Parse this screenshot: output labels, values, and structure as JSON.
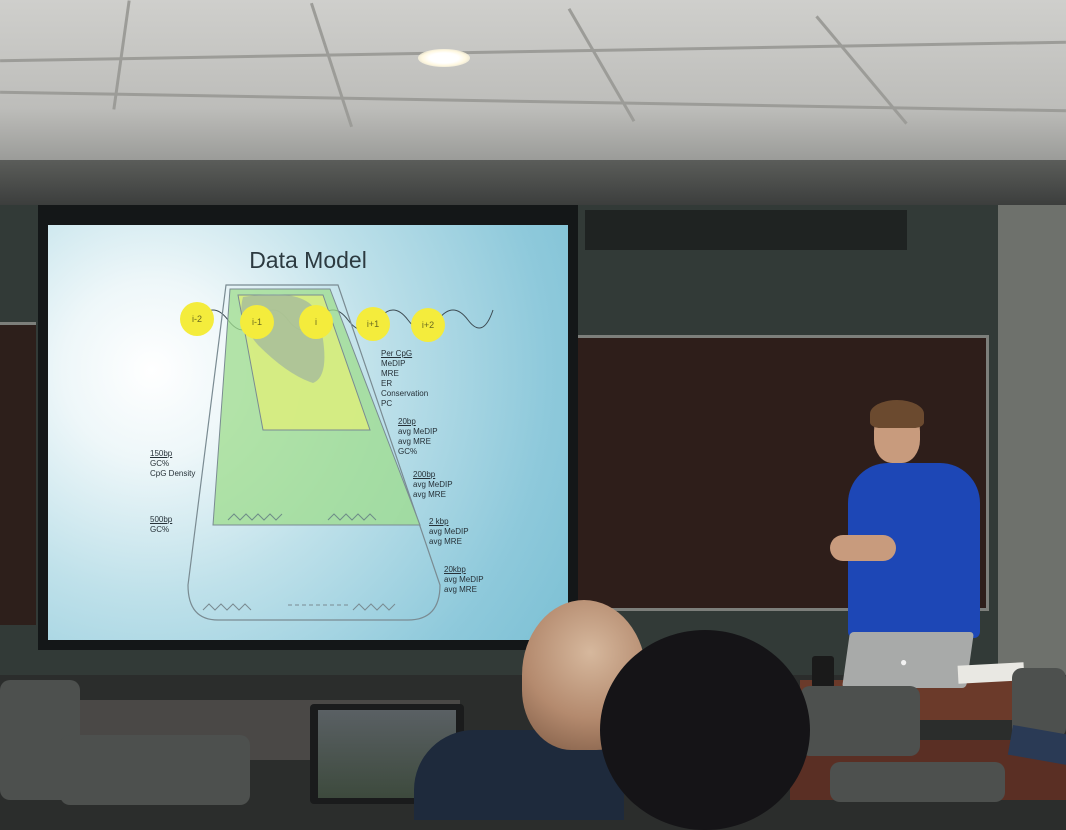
{
  "slide": {
    "title": "Data Model",
    "nodes": [
      "i-2",
      "i-1",
      "i",
      "i+1",
      "i+2"
    ],
    "labels": {
      "per_cpg": {
        "heading": "Per CpG",
        "items": [
          "MeDIP",
          "MRE",
          "ER",
          "Conservation",
          "PC"
        ]
      },
      "bp20": {
        "heading": "20bp",
        "items": [
          "avg MeDIP",
          "avg MRE",
          "GC%"
        ]
      },
      "bp200": {
        "heading": "200bp",
        "items": [
          "avg MeDIP",
          "avg MRE"
        ]
      },
      "kbp2": {
        "heading": "2 kbp",
        "items": [
          "avg MeDIP",
          "avg MRE"
        ]
      },
      "kbp20": {
        "heading": "20kbp",
        "items": [
          "avg MeDIP",
          "avg MRE"
        ]
      },
      "bp150": {
        "heading": "150bp",
        "items": [
          "GC%",
          "CpG Density"
        ]
      },
      "bp500": {
        "heading": "500bp",
        "items": [
          "GC%"
        ]
      }
    }
  },
  "scene": {
    "laptop_logo": "apple-logo-icon",
    "colors": {
      "screen": "#bfe1ea",
      "node_yellow": "#f4ec3c",
      "shirt": "#1d47b6",
      "chalkboard": "#2e1e1a"
    }
  }
}
